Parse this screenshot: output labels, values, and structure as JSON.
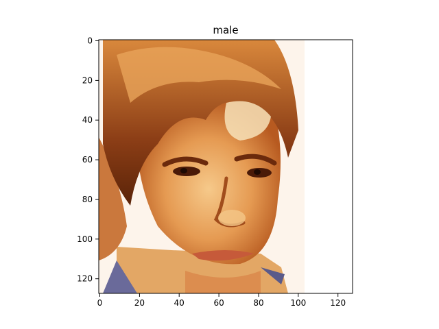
{
  "figure": {
    "title": "male",
    "image_description": "face photo",
    "x_axis": {
      "ticks": [
        "0",
        "20",
        "40",
        "60",
        "80",
        "100",
        "120"
      ],
      "range": [
        0,
        127
      ]
    },
    "y_axis": {
      "ticks": [
        "0",
        "20",
        "40",
        "60",
        "80",
        "100",
        "120"
      ],
      "range": [
        0,
        127
      ]
    }
  }
}
